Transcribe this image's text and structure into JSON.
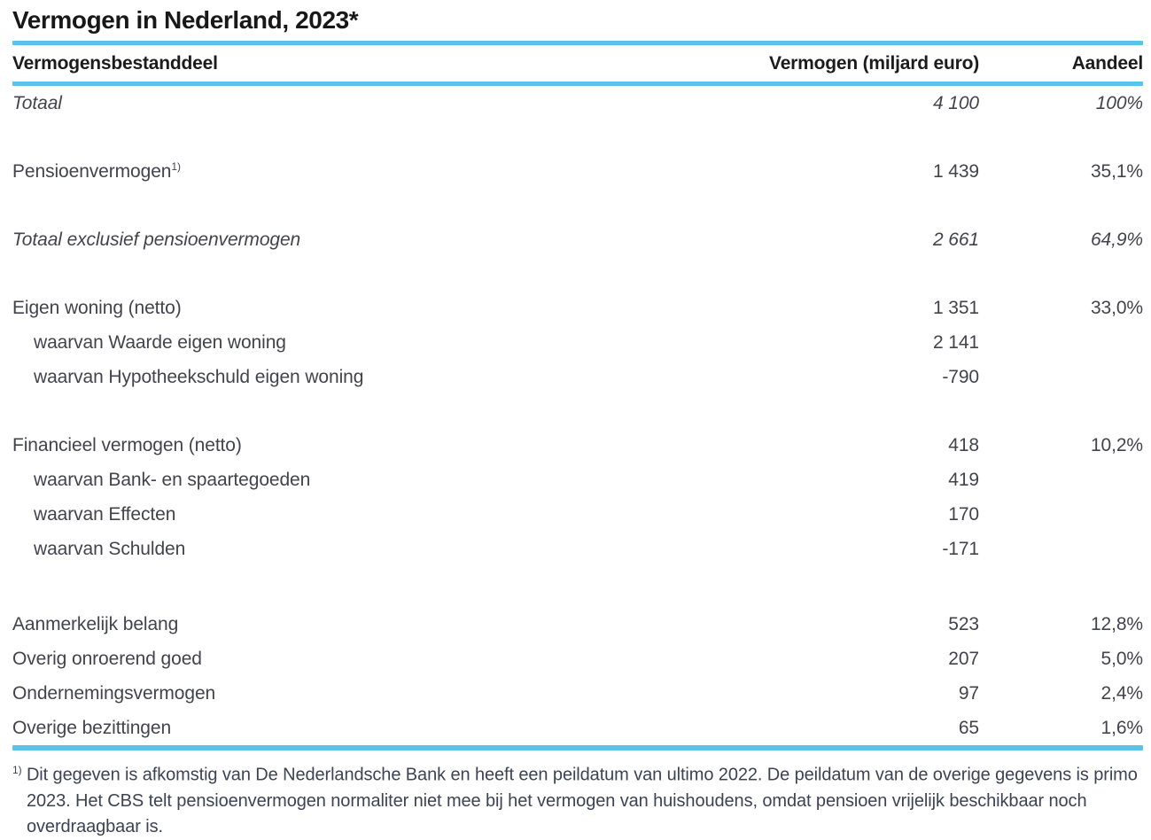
{
  "title": "Vermogen in Nederland, 2023*",
  "chart_data": {
    "type": "table",
    "title": "Vermogen in Nederland, 2023*",
    "columns": [
      "Vermogensbestanddeel",
      "Vermogen (miljard euro)",
      "Aandeel"
    ],
    "rows": [
      {
        "label": "Totaal",
        "value": "4 100",
        "share": "100%",
        "value_num": 4100,
        "share_pct": 100.0,
        "emphasis": "italic"
      },
      {
        "label": "Pensioenvermogen",
        "sup": "1)",
        "value": "1 439",
        "share": "35,1%",
        "value_num": 1439,
        "share_pct": 35.1
      },
      {
        "label": "Totaal exclusief pensioenvermogen",
        "value": "2 661",
        "share": "64,9%",
        "value_num": 2661,
        "share_pct": 64.9,
        "emphasis": "italic"
      },
      {
        "label": "Eigen woning (netto)",
        "value": "1 351",
        "share": "33,0%",
        "value_num": 1351,
        "share_pct": 33.0
      },
      {
        "label": "waarvan Waarde eigen woning",
        "value": "2 141",
        "value_num": 2141,
        "indent": true
      },
      {
        "label": "waarvan Hypotheekschuld eigen woning",
        "value": "-790",
        "value_num": -790,
        "indent": true
      },
      {
        "label": "Financieel vermogen (netto)",
        "value": "418",
        "share": "10,2%",
        "value_num": 418,
        "share_pct": 10.2
      },
      {
        "label": "waarvan Bank- en spaartegoeden",
        "value": "419",
        "value_num": 419,
        "indent": true
      },
      {
        "label": "waarvan Effecten",
        "value": "170",
        "value_num": 170,
        "indent": true
      },
      {
        "label": "waarvan Schulden",
        "value": "-171",
        "value_num": -171,
        "indent": true
      },
      {
        "label": "Aanmerkelijk belang",
        "value": "523",
        "share": "12,8%",
        "value_num": 523,
        "share_pct": 12.8
      },
      {
        "label": "Overig onroerend goed",
        "value": "207",
        "share": "5,0%",
        "value_num": 207,
        "share_pct": 5.0
      },
      {
        "label": "Ondernemingsvermogen",
        "value": "97",
        "share": "2,4%",
        "value_num": 97,
        "share_pct": 2.4
      },
      {
        "label": "Overige bezittingen",
        "value": "65",
        "share": "1,6%",
        "value_num": 65,
        "share_pct": 1.6
      }
    ],
    "footnote": {
      "marker": "1)",
      "text": "Dit gegeven is afkomstig van De Nederlandsche Bank en heeft een peildatum van ultimo 2022. De peildatum van de overige gegevens is primo 2023. Het CBS telt pensioenvermogen normaliter niet mee bij het vermogen van huishoudens, omdat pensioen vrijelijk beschikbaar noch overdraagbaar is."
    },
    "colors": {
      "rule_blue": "#5bc3e8",
      "title_text": "#181818",
      "body_text": "#43434e"
    }
  }
}
